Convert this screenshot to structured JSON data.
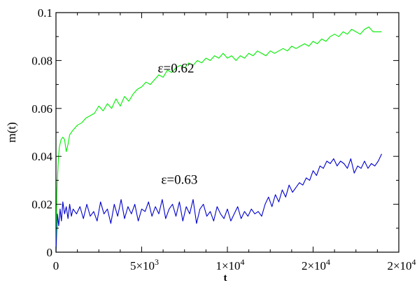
{
  "chart_data": {
    "type": "line",
    "xlabel": "t",
    "ylabel": "m(t)",
    "xlim": [
      0,
      20000
    ],
    "ylim": [
      0,
      0.1
    ],
    "grid": false,
    "x_ticks": [
      {
        "value": 0,
        "label": "0"
      },
      {
        "value": 5000,
        "label": "5×10",
        "exp": "3"
      },
      {
        "value": 10000,
        "label": "1×10",
        "exp": "4"
      },
      {
        "value": 15000,
        "label": "2×10",
        "exp": "4"
      },
      {
        "value": 20000,
        "label": "2×10",
        "exp": "4"
      }
    ],
    "y_ticks": [
      {
        "value": 0,
        "label": "0"
      },
      {
        "value": 0.02,
        "label": "0.02"
      },
      {
        "value": 0.04,
        "label": "0.04"
      },
      {
        "value": 0.06,
        "label": "0.06"
      },
      {
        "value": 0.08,
        "label": "0.08"
      },
      {
        "value": 0.1,
        "label": "0.1"
      }
    ],
    "annotations": [
      {
        "text": "ε=0.62",
        "x": 7000,
        "y": 0.075
      },
      {
        "text": "ε=0.63",
        "x": 7200,
        "y": 0.0285
      }
    ],
    "series": [
      {
        "color": "#00ee00",
        "x": [
          0,
          50,
          100,
          150,
          200,
          300,
          400,
          500,
          600,
          700,
          800,
          1000,
          1250,
          1500,
          1750,
          2000,
          2250,
          2500,
          2750,
          3000,
          3250,
          3500,
          3750,
          4000,
          4250,
          4500,
          4750,
          5000,
          5250,
          5500,
          5750,
          6000,
          6250,
          6500,
          6750,
          7000,
          7250,
          7500,
          7750,
          8000,
          8250,
          8500,
          8750,
          9000,
          9250,
          9500,
          9750,
          10000,
          10250,
          10500,
          10750,
          11000,
          11250,
          11500,
          11750,
          12000,
          12250,
          12500,
          12750,
          13000,
          13250,
          13500,
          13750,
          14000,
          14250,
          14500,
          14750,
          15000,
          15250,
          15500,
          15750,
          16000,
          16250,
          16500,
          16750,
          17000,
          17250,
          17500,
          17750,
          18000,
          18250,
          18500,
          18750,
          19000
        ],
        "values": [
          0.0,
          0.024,
          0.033,
          0.04,
          0.044,
          0.047,
          0.048,
          0.047,
          0.042,
          0.045,
          0.049,
          0.051,
          0.053,
          0.054,
          0.056,
          0.057,
          0.058,
          0.061,
          0.059,
          0.062,
          0.06,
          0.064,
          0.061,
          0.065,
          0.063,
          0.066,
          0.068,
          0.069,
          0.071,
          0.07,
          0.072,
          0.074,
          0.073,
          0.076,
          0.075,
          0.077,
          0.078,
          0.077,
          0.079,
          0.078,
          0.08,
          0.079,
          0.081,
          0.08,
          0.082,
          0.081,
          0.083,
          0.081,
          0.082,
          0.08,
          0.082,
          0.081,
          0.083,
          0.082,
          0.084,
          0.083,
          0.082,
          0.084,
          0.083,
          0.084,
          0.085,
          0.084,
          0.086,
          0.085,
          0.086,
          0.087,
          0.086,
          0.088,
          0.087,
          0.089,
          0.088,
          0.09,
          0.091,
          0.09,
          0.092,
          0.091,
          0.093,
          0.092,
          0.091,
          0.093,
          0.094,
          0.092,
          0.092,
          0.092
        ]
      },
      {
        "color": "#0000cc",
        "x": [
          0,
          80,
          160,
          240,
          320,
          400,
          500,
          600,
          700,
          800,
          900,
          1000,
          1200,
          1400,
          1600,
          1800,
          2000,
          2200,
          2400,
          2600,
          2800,
          3000,
          3200,
          3400,
          3600,
          3800,
          4000,
          4200,
          4400,
          4600,
          4800,
          5000,
          5200,
          5400,
          5600,
          5800,
          6000,
          6200,
          6400,
          6600,
          6800,
          7000,
          7200,
          7400,
          7600,
          7800,
          8000,
          8200,
          8400,
          8600,
          8800,
          9000,
          9200,
          9400,
          9600,
          9800,
          10000,
          10200,
          10400,
          10600,
          10800,
          11000,
          11200,
          11400,
          11600,
          11800,
          12000,
          12200,
          12400,
          12600,
          12800,
          13000,
          13200,
          13400,
          13600,
          13800,
          14000,
          14200,
          14400,
          14600,
          14800,
          15000,
          15200,
          15400,
          15600,
          15800,
          16000,
          16200,
          16400,
          16600,
          16800,
          17000,
          17200,
          17400,
          17600,
          17800,
          18000,
          18200,
          18400,
          18600,
          18800,
          19000
        ],
        "values": [
          0.0,
          0.016,
          0.011,
          0.018,
          0.013,
          0.021,
          0.016,
          0.019,
          0.014,
          0.02,
          0.015,
          0.018,
          0.016,
          0.019,
          0.014,
          0.02,
          0.015,
          0.017,
          0.013,
          0.021,
          0.016,
          0.018,
          0.012,
          0.02,
          0.015,
          0.022,
          0.014,
          0.019,
          0.016,
          0.02,
          0.013,
          0.018,
          0.017,
          0.021,
          0.015,
          0.019,
          0.016,
          0.022,
          0.014,
          0.018,
          0.02,
          0.015,
          0.021,
          0.013,
          0.019,
          0.016,
          0.022,
          0.012,
          0.018,
          0.02,
          0.015,
          0.017,
          0.013,
          0.019,
          0.016,
          0.014,
          0.018,
          0.013,
          0.016,
          0.019,
          0.014,
          0.017,
          0.015,
          0.018,
          0.016,
          0.017,
          0.015,
          0.02,
          0.023,
          0.019,
          0.024,
          0.021,
          0.026,
          0.023,
          0.028,
          0.025,
          0.027,
          0.029,
          0.028,
          0.031,
          0.03,
          0.034,
          0.032,
          0.036,
          0.035,
          0.038,
          0.037,
          0.039,
          0.036,
          0.038,
          0.037,
          0.035,
          0.039,
          0.033,
          0.036,
          0.035,
          0.038,
          0.035,
          0.037,
          0.036,
          0.038,
          0.041
        ]
      }
    ]
  }
}
